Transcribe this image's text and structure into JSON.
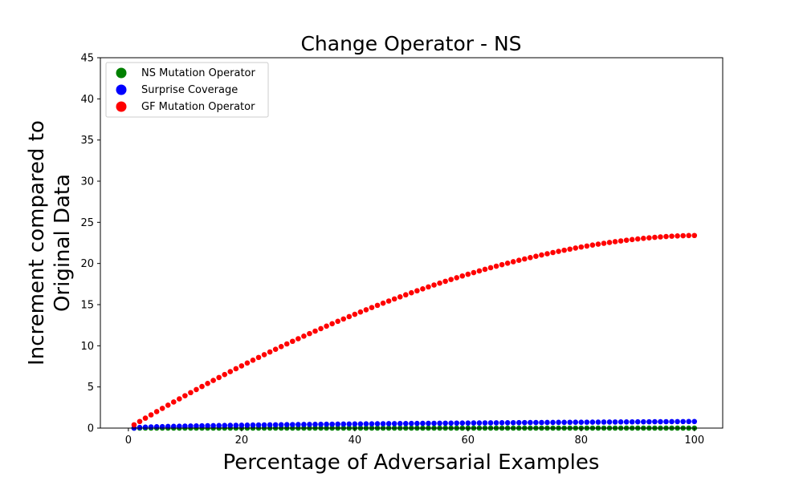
{
  "chart_data": {
    "type": "scatter",
    "title": "Change Operator - NS",
    "xlabel": "Percentage of Adversarial Examples",
    "ylabel_lines": [
      "Increment compared to",
      "Original Data"
    ],
    "xlim": [
      -4.95,
      105
    ],
    "ylim": [
      0,
      45
    ],
    "xticks": [
      0,
      20,
      40,
      60,
      80,
      100
    ],
    "yticks": [
      0,
      5,
      10,
      15,
      20,
      25,
      30,
      35,
      40,
      45
    ],
    "legend_position": "top-left",
    "grid": false,
    "series": [
      {
        "name": "NS Mutation Operator",
        "color": "#008000",
        "x_start": 1,
        "x_end": 100,
        "y": [
          0.0,
          0.0
        ]
      },
      {
        "name": "Surprise Coverage",
        "color": "#0000ff",
        "x_start": 1,
        "x_end": 100,
        "y": [
          0.0,
          0.8
        ]
      },
      {
        "name": "GF Mutation Operator",
        "color": "#ff0000",
        "x_start": 1,
        "x_end": 100,
        "y": [
          0.4,
          23.4
        ]
      }
    ]
  }
}
